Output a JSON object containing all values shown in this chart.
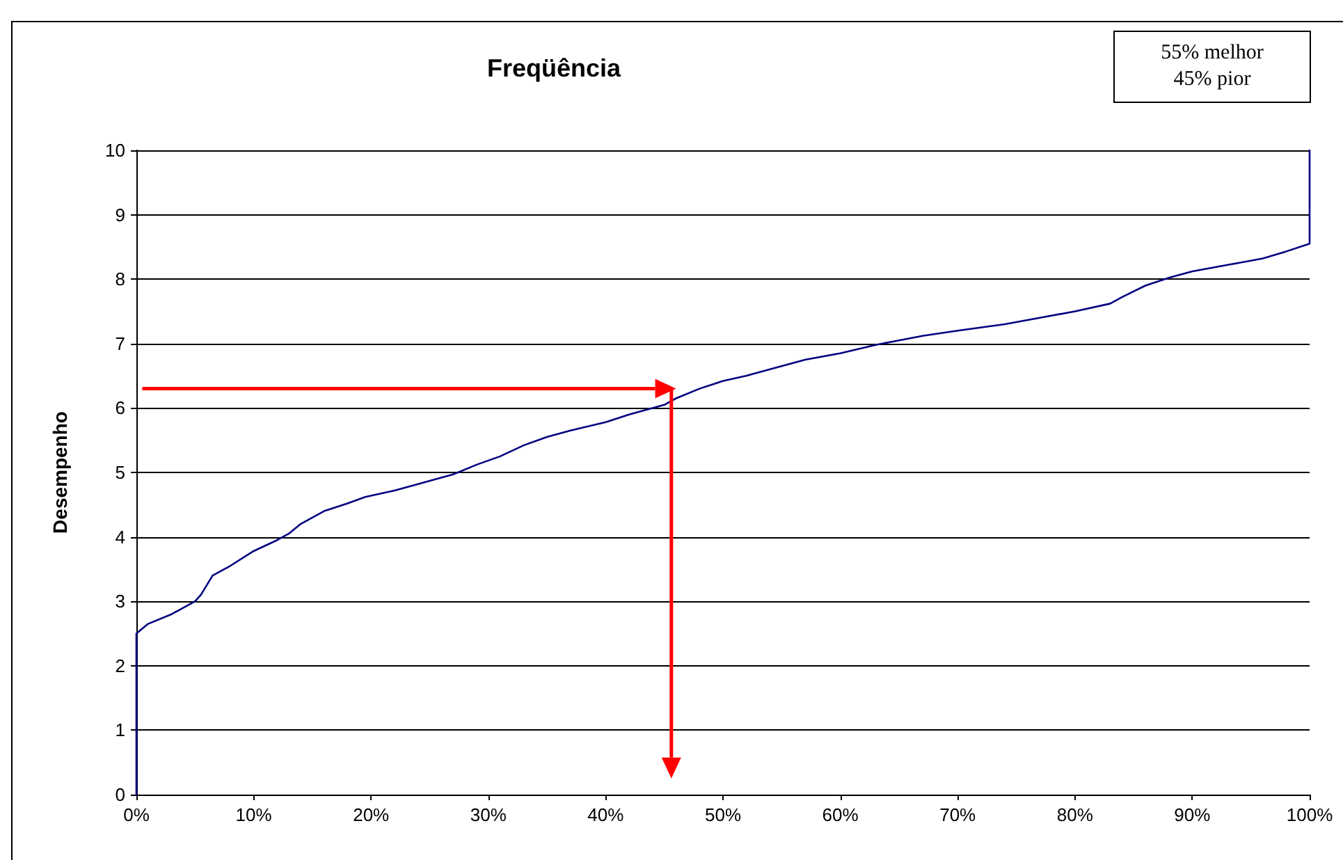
{
  "chart_data": {
    "type": "line",
    "title": "Freqüência",
    "ylabel": "Desempenho",
    "annotations": [
      "55% melhor\n45% pior"
    ],
    "x": [
      0,
      0,
      1,
      3,
      5,
      5.5,
      6.5,
      8,
      10,
      12,
      13,
      14,
      16,
      18,
      19.5,
      22,
      24,
      27,
      29,
      31,
      33,
      35,
      37,
      40,
      42,
      45,
      46,
      48,
      50,
      52,
      54,
      57,
      60,
      63,
      65,
      67,
      70,
      74,
      77,
      80,
      83,
      84,
      86,
      88,
      90,
      93,
      96,
      98,
      100,
      100,
      100
    ],
    "series": [
      {
        "color": "#000080",
        "values": [
          0,
          2.5,
          2.65,
          2.8,
          3.0,
          3.1,
          3.4,
          3.55,
          3.78,
          3.95,
          4.05,
          4.2,
          4.4,
          4.52,
          4.62,
          4.72,
          4.82,
          4.97,
          5.12,
          5.25,
          5.42,
          5.55,
          5.65,
          5.78,
          5.9,
          6.05,
          6.15,
          6.3,
          6.42,
          6.5,
          6.6,
          6.75,
          6.85,
          6.98,
          7.05,
          7.12,
          7.2,
          7.3,
          7.4,
          7.5,
          7.62,
          7.72,
          7.9,
          8.02,
          8.12,
          8.22,
          8.32,
          8.43,
          8.55,
          8.85,
          10
        ]
      }
    ],
    "xlim": [
      0,
      100
    ],
    "xticks": [
      {
        "value": 0,
        "label": "0%"
      },
      {
        "value": 10,
        "label": "10%"
      },
      {
        "value": 20,
        "label": "20%"
      },
      {
        "value": 30,
        "label": "30%"
      },
      {
        "value": 40,
        "label": "40%"
      },
      {
        "value": 50,
        "label": "50%"
      },
      {
        "value": 60,
        "label": "60%"
      },
      {
        "value": 70,
        "label": "70%"
      },
      {
        "value": 80,
        "label": "80%"
      },
      {
        "value": 90,
        "label": "90%"
      },
      {
        "value": 100,
        "label": "100%"
      }
    ],
    "ylim": [
      0,
      10
    ],
    "yticks": [
      0,
      1,
      2,
      3,
      4,
      5,
      6,
      7,
      8,
      9,
      10
    ],
    "grid": "y",
    "marker": "none",
    "line_style": "solid"
  }
}
